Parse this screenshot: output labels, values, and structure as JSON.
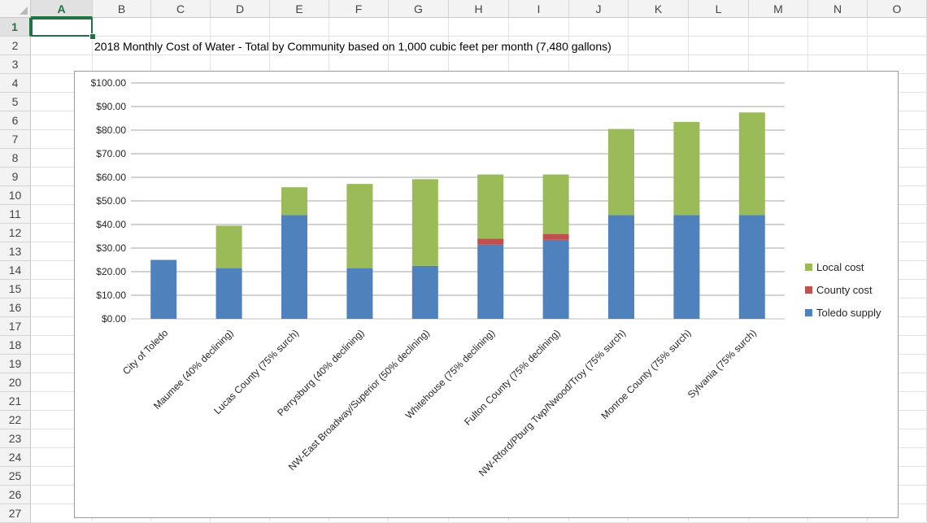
{
  "spreadsheet": {
    "columns": [
      "A",
      "B",
      "C",
      "D",
      "E",
      "F",
      "G",
      "H",
      "I",
      "J",
      "K",
      "L",
      "M",
      "N",
      "O"
    ],
    "rows": [
      "1",
      "2",
      "3",
      "4",
      "5",
      "6",
      "7",
      "8",
      "9",
      "10",
      "11",
      "12",
      "13",
      "14",
      "15",
      "16",
      "17",
      "18",
      "19",
      "20",
      "21",
      "22",
      "23",
      "24",
      "25",
      "26",
      "27"
    ],
    "active_cell": "A1",
    "title_cell_text": "2018 Monthly Cost of Water - Total by Community based on 1,000 cubic feet per month (7,480 gallons)"
  },
  "colors": {
    "toledo_supply": "#4f81bd",
    "county_cost": "#c0504d",
    "local_cost": "#9bbb59",
    "selection": "#217346"
  },
  "chart_data": {
    "type": "bar",
    "stacked": true,
    "categories": [
      "City of Toledo",
      "Maumee (40% declining)",
      "Lucas County (75% surch)",
      "Perrysburg (40% declining)",
      "NW-East Broadway/Superior (50% declining)",
      "Whitehouse (75% declining)",
      "Fulton County (75% declining)",
      "NW-Rford/Pburg Twp/Nwood/Troy (75% surch)",
      "Monroe County (75% surch)",
      "Sylvania (75% surch)"
    ],
    "series": [
      {
        "name": "Toledo supply",
        "values": [
          25,
          21.5,
          44,
          21.5,
          22.5,
          31.5,
          33.5,
          44,
          44,
          44
        ]
      },
      {
        "name": "County cost",
        "values": [
          0,
          0,
          0,
          0,
          0,
          2.5,
          2.5,
          0,
          0,
          0
        ]
      },
      {
        "name": "Local cost",
        "values": [
          0,
          18,
          11.8,
          35.7,
          36.7,
          27.2,
          25.2,
          36.5,
          39.5,
          43.5
        ]
      }
    ],
    "yticks": [
      "$0.00",
      "$10.00",
      "$20.00",
      "$30.00",
      "$40.00",
      "$50.00",
      "$60.00",
      "$70.00",
      "$80.00",
      "$90.00",
      "$100.00"
    ],
    "ylim": [
      0,
      100
    ],
    "grid": true,
    "legend": [
      "Local cost",
      "County cost",
      "Toledo supply"
    ],
    "legend_position": "right"
  }
}
